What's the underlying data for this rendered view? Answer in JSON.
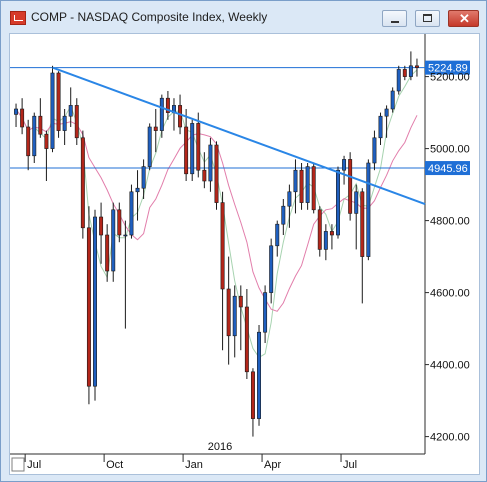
{
  "window": {
    "title": "COMP - NASDAQ Composite Index, Weekly",
    "buttons": {
      "minimize": "minimize",
      "maximize": "maximize",
      "close": "close"
    }
  },
  "chart_data": {
    "type": "candlestick",
    "symbol": "COMP",
    "name": "NASDAQ Composite Index",
    "period": "Weekly",
    "ylim": [
      4160,
      5310
    ],
    "y_ticks": [
      "5200.00",
      "5000.00",
      "4800.00",
      "4600.00",
      "4400.00",
      "4200.00"
    ],
    "x_ticks": [
      "Jul",
      "Oct",
      "Jan",
      "Apr",
      "Jul"
    ],
    "year_label": "2016",
    "price_levels": [
      {
        "label": "5224.89",
        "value": 5224.89
      },
      {
        "label": "4945.96",
        "value": 4945.96
      }
    ],
    "trendline": {
      "from": {
        "week": 6,
        "value": 5225
      },
      "to": {
        "week": 61,
        "value": 4885
      }
    },
    "colors": {
      "up": "#1f5fbf",
      "down": "#b3261a",
      "levels": "#1f6fd6",
      "trendline": "#2a86e6",
      "ma_fast": "#a7d3b0",
      "ma_slow": "#e27eab"
    },
    "candles": [
      [
        5095,
        5125,
        5060,
        5110
      ],
      [
        5110,
        5140,
        5040,
        5060
      ],
      [
        5060,
        5080,
        4940,
        4980
      ],
      [
        4980,
        5100,
        4960,
        5090
      ],
      [
        5090,
        5140,
        5030,
        5040
      ],
      [
        5040,
        5050,
        4910,
        5000
      ],
      [
        5000,
        5230,
        4990,
        5210
      ],
      [
        5210,
        5215,
        5030,
        5050
      ],
      [
        5050,
        5110,
        5010,
        5090
      ],
      [
        5090,
        5170,
        5060,
        5120
      ],
      [
        5120,
        5140,
        5010,
        5030
      ],
      [
        5030,
        5050,
        4750,
        4780
      ],
      [
        4780,
        4840,
        4290,
        4340
      ],
      [
        4340,
        4830,
        4300,
        4810
      ],
      [
        4810,
        4850,
        4680,
        4760
      ],
      [
        4760,
        4790,
        4630,
        4660
      ],
      [
        4660,
        4850,
        4630,
        4830
      ],
      [
        4830,
        4850,
        4740,
        4760
      ],
      [
        4760,
        4800,
        4500,
        4760
      ],
      [
        4760,
        4900,
        4750,
        4880
      ],
      [
        4880,
        4940,
        4800,
        4890
      ],
      [
        4890,
        4970,
        4860,
        4950
      ],
      [
        4950,
        5070,
        4940,
        5060
      ],
      [
        5060,
        5110,
        4990,
        5050
      ],
      [
        5050,
        5150,
        5030,
        5140
      ],
      [
        5140,
        5160,
        5080,
        5100
      ],
      [
        5100,
        5140,
        5050,
        5120
      ],
      [
        5120,
        5150,
        5040,
        5060
      ],
      [
        5060,
        5110,
        4910,
        4930
      ],
      [
        4930,
        5080,
        4910,
        5070
      ],
      [
        5070,
        5100,
        4920,
        4940
      ],
      [
        4940,
        4990,
        4890,
        4910
      ],
      [
        4910,
        5030,
        4880,
        5010
      ],
      [
        5010,
        5020,
        4830,
        4850
      ],
      [
        4850,
        4880,
        4440,
        4610
      ],
      [
        4610,
        4700,
        4400,
        4480
      ],
      [
        4480,
        4620,
        4420,
        4590
      ],
      [
        4590,
        4620,
        4440,
        4560
      ],
      [
        4560,
        4610,
        4360,
        4380
      ],
      [
        4380,
        4390,
        4200,
        4250
      ],
      [
        4250,
        4510,
        4230,
        4490
      ],
      [
        4490,
        4620,
        4460,
        4600
      ],
      [
        4600,
        4750,
        4570,
        4730
      ],
      [
        4730,
        4800,
        4700,
        4790
      ],
      [
        4790,
        4860,
        4760,
        4840
      ],
      [
        4840,
        4900,
        4780,
        4880
      ],
      [
        4880,
        4970,
        4820,
        4940
      ],
      [
        4940,
        4960,
        4830,
        4850
      ],
      [
        4850,
        4960,
        4830,
        4950
      ],
      [
        4950,
        4960,
        4820,
        4830
      ],
      [
        4830,
        4840,
        4700,
        4720
      ],
      [
        4720,
        4790,
        4690,
        4770
      ],
      [
        4770,
        4790,
        4720,
        4760
      ],
      [
        4760,
        4950,
        4750,
        4940
      ],
      [
        4940,
        4980,
        4900,
        4970
      ],
      [
        4970,
        4990,
        4800,
        4820
      ],
      [
        4820,
        4900,
        4720,
        4880
      ],
      [
        4880,
        4890,
        4570,
        4700
      ],
      [
        4700,
        4970,
        4690,
        4960
      ],
      [
        4960,
        5050,
        4940,
        5030
      ],
      [
        5030,
        5100,
        5010,
        5090
      ],
      [
        5090,
        5120,
        5030,
        5110
      ],
      [
        5110,
        5170,
        5100,
        5160
      ],
      [
        5160,
        5230,
        5150,
        5220
      ],
      [
        5220,
        5230,
        5190,
        5200
      ],
      [
        5200,
        5270,
        5190,
        5230
      ],
      [
        5230,
        5250,
        5200,
        5225
      ]
    ]
  }
}
